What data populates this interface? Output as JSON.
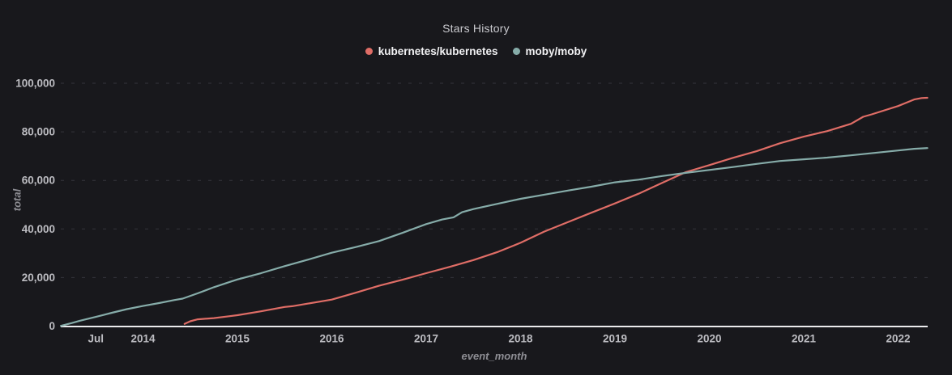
{
  "title": "Stars History",
  "chart_data": {
    "type": "line",
    "title": "Stars History",
    "xlabel": "event_month",
    "ylabel": "total",
    "ylim": [
      0,
      100000
    ],
    "grid": "horizontal-dashed",
    "legend_position": "top-center",
    "x_axis": {
      "ticks": [
        {
          "label": "Jul",
          "t": 2013.5
        },
        {
          "label": "2014",
          "t": 2014
        },
        {
          "label": "2015",
          "t": 2015
        },
        {
          "label": "2016",
          "t": 2016
        },
        {
          "label": "2017",
          "t": 2017
        },
        {
          "label": "2018",
          "t": 2018
        },
        {
          "label": "2019",
          "t": 2019
        },
        {
          "label": "2020",
          "t": 2020
        },
        {
          "label": "2021",
          "t": 2021
        },
        {
          "label": "2022",
          "t": 2022
        }
      ]
    },
    "y_axis": {
      "ticks": [
        {
          "label": "0",
          "value": 0
        },
        {
          "label": "20,000",
          "value": 20000
        },
        {
          "label": "40,000",
          "value": 40000
        },
        {
          "label": "60,000",
          "value": 60000
        },
        {
          "label": "80,000",
          "value": 80000
        },
        {
          "label": "100,000",
          "value": 100000
        }
      ]
    },
    "series": [
      {
        "name": "kubernetes/kubernetes",
        "color": "#df6d66",
        "points": [
          [
            2014.44,
            900
          ],
          [
            2014.5,
            2000
          ],
          [
            2014.58,
            2800
          ],
          [
            2014.75,
            3300
          ],
          [
            2014.92,
            4100
          ],
          [
            2015.0,
            4500
          ],
          [
            2015.25,
            6100
          ],
          [
            2015.5,
            7900
          ],
          [
            2015.58,
            8200
          ],
          [
            2015.75,
            9300
          ],
          [
            2016.0,
            10900
          ],
          [
            2016.25,
            13700
          ],
          [
            2016.5,
            16600
          ],
          [
            2016.75,
            19100
          ],
          [
            2017.0,
            21800
          ],
          [
            2017.25,
            24400
          ],
          [
            2017.5,
            27200
          ],
          [
            2017.75,
            30400
          ],
          [
            2018.0,
            34300
          ],
          [
            2018.25,
            38900
          ],
          [
            2018.5,
            42800
          ],
          [
            2018.75,
            46700
          ],
          [
            2019.0,
            50500
          ],
          [
            2019.25,
            54500
          ],
          [
            2019.5,
            59000
          ],
          [
            2019.75,
            63400
          ],
          [
            2020.0,
            66300
          ],
          [
            2020.25,
            69300
          ],
          [
            2020.5,
            72000
          ],
          [
            2020.75,
            75300
          ],
          [
            2021.0,
            78000
          ],
          [
            2021.25,
            80300
          ],
          [
            2021.5,
            83300
          ],
          [
            2021.63,
            86200
          ],
          [
            2021.72,
            87200
          ],
          [
            2022.0,
            90600
          ],
          [
            2022.17,
            93300
          ],
          [
            2022.25,
            93900
          ],
          [
            2022.31,
            94000
          ]
        ]
      },
      {
        "name": "moby/moby",
        "color": "#86aca9",
        "points": [
          [
            2013.13,
            100
          ],
          [
            2013.25,
            1300
          ],
          [
            2013.33,
            2200
          ],
          [
            2013.5,
            3800
          ],
          [
            2013.67,
            5500
          ],
          [
            2013.83,
            7000
          ],
          [
            2014.0,
            8300
          ],
          [
            2014.17,
            9500
          ],
          [
            2014.33,
            10700
          ],
          [
            2014.42,
            11300
          ],
          [
            2014.58,
            13500
          ],
          [
            2014.75,
            16000
          ],
          [
            2014.92,
            18200
          ],
          [
            2015.0,
            19200
          ],
          [
            2015.25,
            21800
          ],
          [
            2015.5,
            24700
          ],
          [
            2015.75,
            27400
          ],
          [
            2016.0,
            30200
          ],
          [
            2016.25,
            32500
          ],
          [
            2016.5,
            35000
          ],
          [
            2016.75,
            38400
          ],
          [
            2017.0,
            42000
          ],
          [
            2017.17,
            43900
          ],
          [
            2017.29,
            44800
          ],
          [
            2017.38,
            46900
          ],
          [
            2017.5,
            48200
          ],
          [
            2017.75,
            50300
          ],
          [
            2018.0,
            52400
          ],
          [
            2018.25,
            54100
          ],
          [
            2018.5,
            55800
          ],
          [
            2018.75,
            57400
          ],
          [
            2019.0,
            59200
          ],
          [
            2019.25,
            60300
          ],
          [
            2019.5,
            61800
          ],
          [
            2019.75,
            63100
          ],
          [
            2020.0,
            64300
          ],
          [
            2020.25,
            65500
          ],
          [
            2020.5,
            66800
          ],
          [
            2020.75,
            68000
          ],
          [
            2021.0,
            68700
          ],
          [
            2021.25,
            69400
          ],
          [
            2021.5,
            70300
          ],
          [
            2021.75,
            71300
          ],
          [
            2022.0,
            72300
          ],
          [
            2022.17,
            73000
          ],
          [
            2022.31,
            73300
          ]
        ]
      }
    ]
  },
  "colors": {
    "background": "#18181c",
    "grid_line": "#34343b",
    "axis_line": "#ebebed",
    "tick_text": "#bdbdc2",
    "axis_title_text": "#8e8e94",
    "title_text": "#c9c9ce",
    "legend_text": "#f2f2f4"
  }
}
